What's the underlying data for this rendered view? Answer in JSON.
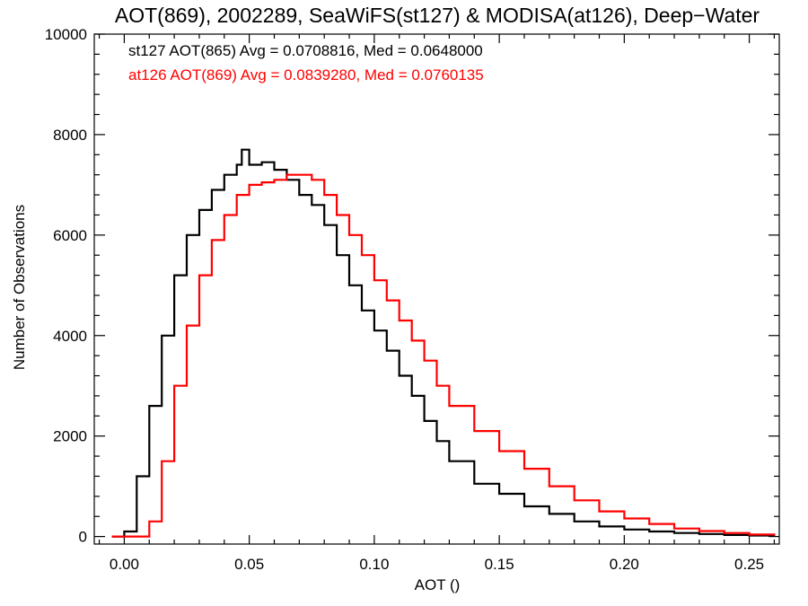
{
  "chart_data": {
    "type": "line",
    "title": "AOT(869), 2002289, SeaWiFS(st127) & MODISA(at126), Deep−Water",
    "xlabel": "AOT ()",
    "ylabel": "Number of Observations",
    "xlim": [
      -0.012,
      0.262
    ],
    "ylim": [
      -150,
      10000
    ],
    "x_ticks": [
      0.0,
      0.05,
      0.1,
      0.15,
      0.2,
      0.25
    ],
    "x_tick_labels": [
      "0.00",
      "0.05",
      "0.10",
      "0.15",
      "0.20",
      "0.25"
    ],
    "y_ticks": [
      0,
      2000,
      4000,
      6000,
      8000,
      10000
    ],
    "y_tick_labels": [
      "0",
      "2000",
      "4000",
      "6000",
      "8000",
      "10000"
    ],
    "legend_placement": "top-left",
    "grid": false,
    "series": [
      {
        "name": "st127 AOT(865) Avg = 0.0708816, Med = 0.0648000",
        "color": "#000000",
        "x": [
          -0.005,
          0.0,
          0.005,
          0.01,
          0.015,
          0.02,
          0.025,
          0.03,
          0.035,
          0.04,
          0.045,
          0.047,
          0.05,
          0.055,
          0.06,
          0.065,
          0.07,
          0.075,
          0.08,
          0.085,
          0.09,
          0.095,
          0.1,
          0.105,
          0.11,
          0.115,
          0.12,
          0.125,
          0.13,
          0.14,
          0.15,
          0.16,
          0.17,
          0.18,
          0.19,
          0.2,
          0.21,
          0.22,
          0.23,
          0.24,
          0.25,
          0.26
        ],
        "values": [
          0,
          100,
          1200,
          2600,
          4000,
          5200,
          6000,
          6500,
          6900,
          7200,
          7400,
          7700,
          7400,
          7450,
          7300,
          7100,
          6800,
          6600,
          6200,
          5600,
          5000,
          4500,
          4100,
          3700,
          3200,
          2800,
          2300,
          1900,
          1500,
          1050,
          850,
          600,
          450,
          300,
          200,
          140,
          100,
          70,
          50,
          30,
          20,
          10
        ]
      },
      {
        "name": "at126 AOT(869) Avg = 0.0839280, Med = 0.0760135",
        "color": "#ff0000",
        "x": [
          -0.005,
          0.005,
          0.01,
          0.015,
          0.02,
          0.025,
          0.03,
          0.035,
          0.04,
          0.045,
          0.05,
          0.055,
          0.06,
          0.065,
          0.07,
          0.075,
          0.08,
          0.085,
          0.09,
          0.095,
          0.1,
          0.105,
          0.11,
          0.115,
          0.12,
          0.125,
          0.13,
          0.14,
          0.15,
          0.16,
          0.17,
          0.18,
          0.19,
          0.2,
          0.21,
          0.22,
          0.23,
          0.24,
          0.25,
          0.26
        ],
        "values": [
          0,
          0,
          300,
          1500,
          3000,
          4200,
          5200,
          5900,
          6400,
          6800,
          7000,
          7050,
          7100,
          7200,
          7200,
          7100,
          6800,
          6400,
          6000,
          5600,
          5100,
          4700,
          4300,
          3900,
          3500,
          3000,
          2600,
          2100,
          1700,
          1350,
          1000,
          720,
          500,
          360,
          250,
          160,
          110,
          70,
          40,
          20
        ]
      }
    ]
  }
}
